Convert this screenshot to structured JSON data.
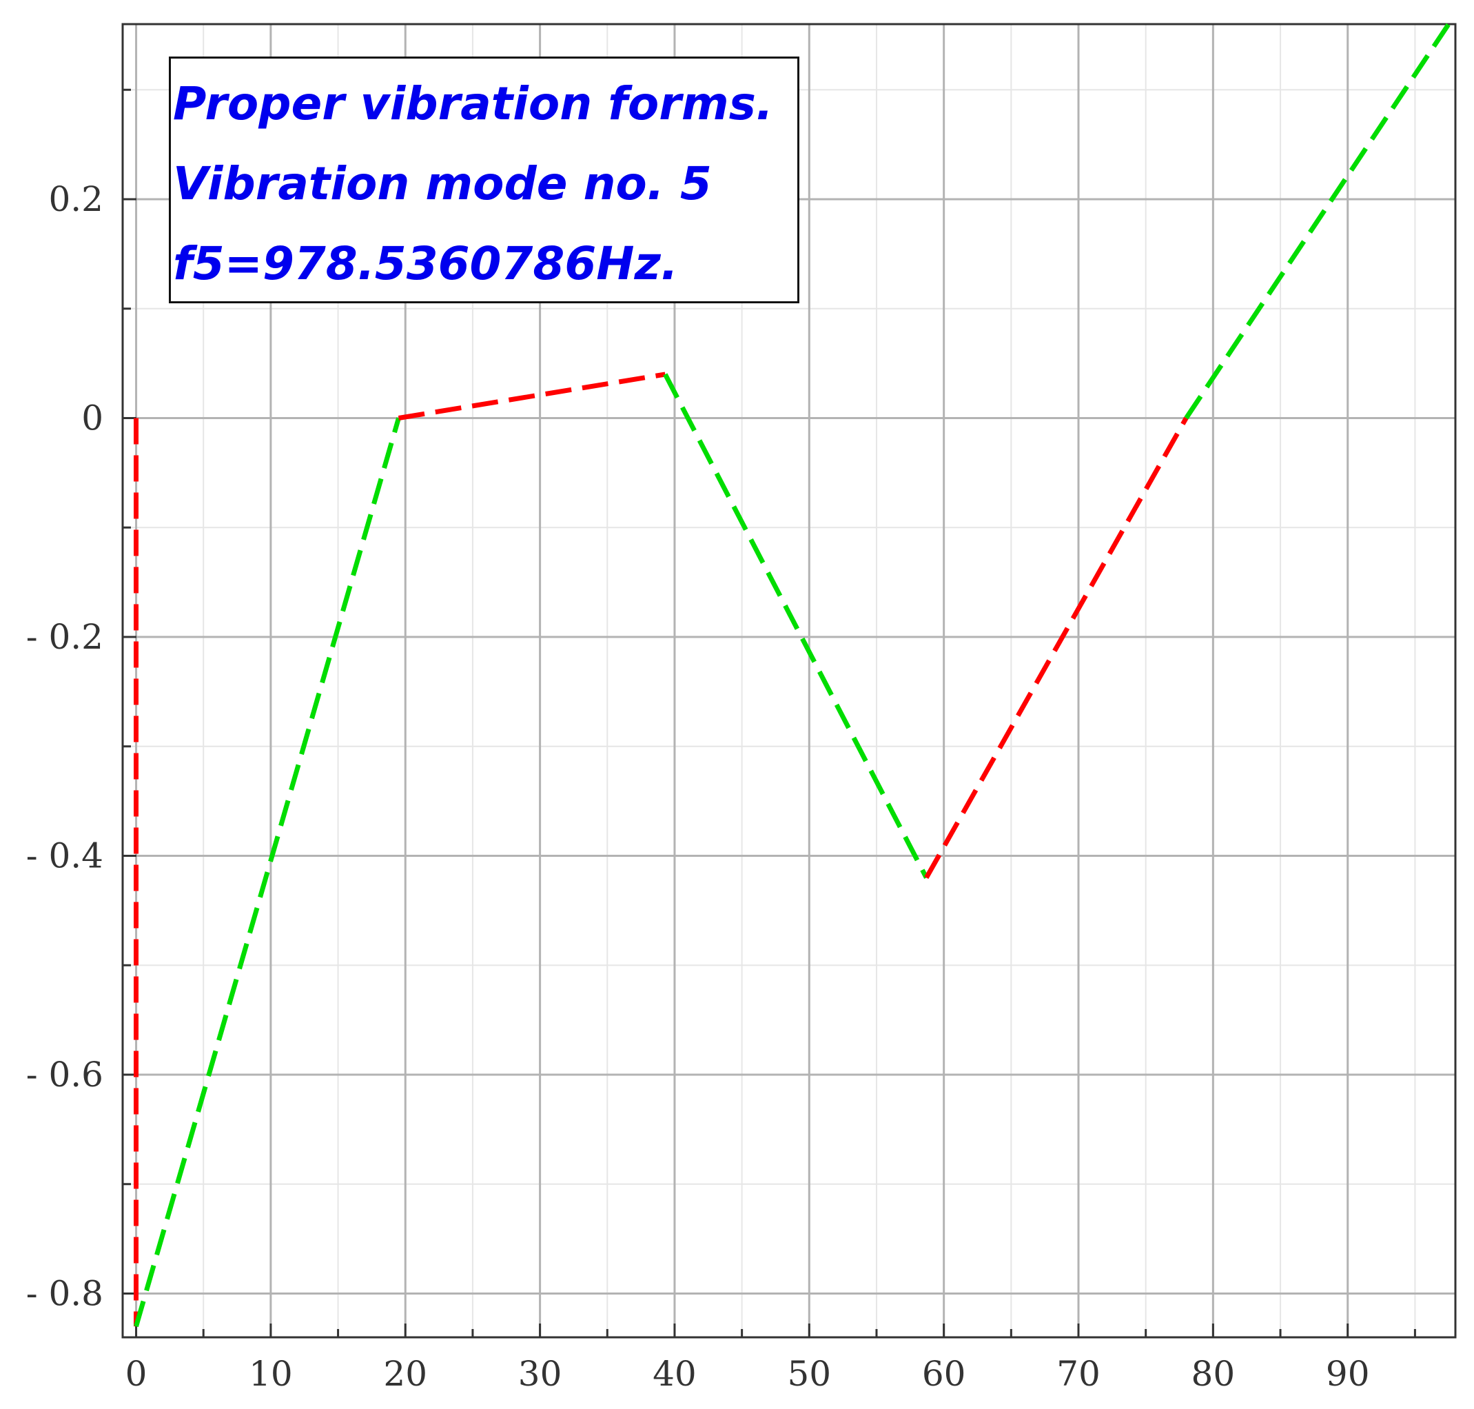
{
  "chart_data": {
    "type": "line",
    "annotation": [
      "Proper vibration forms.",
      "Vibration mode no. 5",
      "f5=978.5360786Hz."
    ],
    "xlim": [
      -1,
      98
    ],
    "ylim": [
      -0.84,
      0.36
    ],
    "x_ticks": [
      0,
      10,
      20,
      30,
      40,
      50,
      60,
      70,
      80,
      90
    ],
    "x_tick_labels": [
      "0",
      "10",
      "20",
      "30",
      "40",
      "50",
      "60",
      "70",
      "80",
      "90"
    ],
    "y_ticks": [
      0.2,
      0,
      -0.2,
      -0.4,
      -0.6,
      -0.8
    ],
    "y_tick_labels": [
      "0.2",
      "0",
      "- 0.2",
      "- 0.4",
      "- 0.6",
      "- 0.8"
    ],
    "grid": true,
    "line_style": "dashed",
    "series": [
      {
        "color": "#ff0000",
        "points": [
          [
            0,
            0
          ],
          [
            0,
            -0.83
          ]
        ]
      },
      {
        "color": "#00dd00",
        "points": [
          [
            0,
            -0.83
          ],
          [
            19.5,
            0
          ]
        ]
      },
      {
        "color": "#ff0000",
        "points": [
          [
            19.5,
            0
          ],
          [
            39.3,
            0.04
          ]
        ]
      },
      {
        "color": "#00dd00",
        "points": [
          [
            39.3,
            0.04
          ],
          [
            58.7,
            -0.42
          ]
        ]
      },
      {
        "color": "#ff0000",
        "points": [
          [
            58.7,
            -0.42
          ],
          [
            78,
            0
          ]
        ]
      },
      {
        "color": "#00dd00",
        "points": [
          [
            78,
            0
          ],
          [
            97.5,
            0.36
          ]
        ]
      }
    ]
  }
}
